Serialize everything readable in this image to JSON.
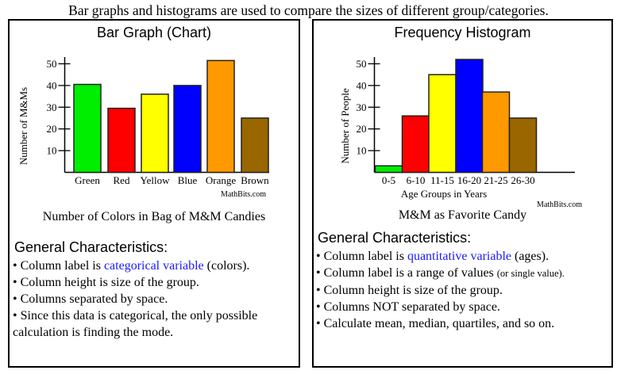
{
  "heading": "Bar graphs and histograms are used to compare the sizes of different group/categories.",
  "left_panel": {
    "title": "Bar Graph (Chart)",
    "watermark": "MathBits.com",
    "caption": "Number of Colors in Bag of M&M Candies",
    "characteristics_title": "General Characteristics:",
    "bullets": [
      {
        "pre": "• Column label is ",
        "highlight": "categorical variable",
        "post": " (colors)."
      },
      {
        "pre": "• Column height is size of the group."
      },
      {
        "pre": "• Columns separated by space."
      },
      {
        "pre": "• Since this data is categorical, the only possible calculation is finding the mode."
      }
    ]
  },
  "right_panel": {
    "title": "Frequency Histogram",
    "watermark": "MathBits.com",
    "caption": "M&M as Favorite Candy",
    "characteristics_title": "General Characteristics:",
    "bullets": [
      {
        "pre": "• Column label is ",
        "highlight": "quantitative variable",
        "post": " (ages)."
      },
      {
        "pre": "• Column label is a range of values ",
        "small": "(or single value)."
      },
      {
        "pre": "• Column height is size of the group."
      },
      {
        "pre": "• Columns NOT separated by space."
      },
      {
        "pre": "• Calculate mean, median, quartiles, and so on."
      }
    ]
  },
  "chart_data": [
    {
      "type": "bar",
      "title": "Bar Graph (Chart)",
      "categories": [
        "Green",
        "Red",
        "Yellow",
        "Blue",
        "Orange",
        "Brown"
      ],
      "values": [
        40.5,
        29.5,
        36,
        40,
        51.5,
        25
      ],
      "colors": [
        "#00ee00",
        "#ff0000",
        "#ffff00",
        "#0000ff",
        "#ff9900",
        "#996600"
      ],
      "xlabel": "",
      "ylabel": "Number of M&Ms",
      "yticks": [
        10,
        20,
        30,
        40,
        50
      ],
      "ylim": [
        0,
        55
      ],
      "grid": false,
      "legend": "none"
    },
    {
      "type": "bar",
      "title": "Frequency Histogram",
      "categories": [
        "0-5",
        "6-10",
        "11-15",
        "16-20",
        "21-25",
        "26-30"
      ],
      "values": [
        3,
        26,
        45,
        52,
        37,
        25
      ],
      "colors": [
        "#00ee00",
        "#ff0000",
        "#ffff00",
        "#0000ff",
        "#ff9900",
        "#996600"
      ],
      "xlabel": "Age Groups in Years",
      "ylabel": "Number of People",
      "yticks": [
        10,
        20,
        30,
        40,
        50
      ],
      "ylim": [
        0,
        55
      ],
      "grid": false,
      "legend": "none"
    }
  ]
}
